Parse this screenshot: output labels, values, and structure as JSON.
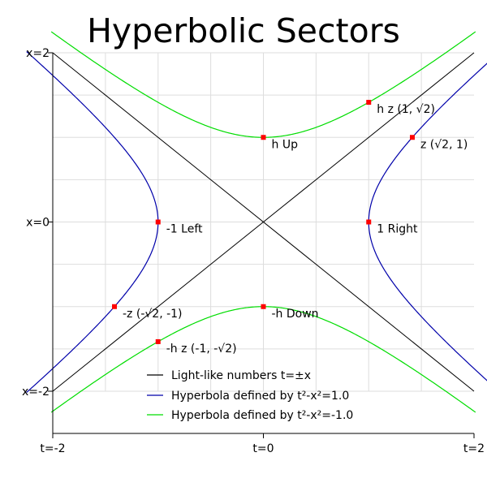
{
  "chart_data": {
    "type": "line",
    "title": "Hyperbolic Sectors",
    "xlim": [
      -2,
      2
    ],
    "ylim": [
      -2,
      2
    ],
    "grid": true,
    "legend_position": "lower-right",
    "x_ticks": [
      {
        "value": -2,
        "label": "t=-2"
      },
      {
        "value": 0,
        "label": "t=0"
      },
      {
        "value": 2,
        "label": "t=2"
      }
    ],
    "y_ticks": [
      {
        "value": 2,
        "label": "x=2"
      },
      {
        "value": 0,
        "label": "x=0"
      },
      {
        "value": -2,
        "label": "x=-2"
      }
    ],
    "series": [
      {
        "name": "Light-like numbers t=±x",
        "color": "#000000",
        "equation": "t=±x"
      },
      {
        "name": "Hyperbola defined by t²-x²=1.0",
        "color": "#0000aa",
        "equation": "t²-x²=1.0"
      },
      {
        "name": "Hyperbola defined by t²-x²=-1.0",
        "color": "#00dd00",
        "equation": "t²-x²=-1.0"
      }
    ],
    "points": [
      {
        "label": "1 Right",
        "t": 1,
        "x": 0
      },
      {
        "label": "-1 Left",
        "t": -1,
        "x": 0
      },
      {
        "label": "h Up",
        "t": 0,
        "x": 1
      },
      {
        "label": "-h Down",
        "t": 0,
        "x": -1
      },
      {
        "label": "z (√2, 1)",
        "t": 1.4142,
        "x": 1
      },
      {
        "label": "-z (-√2, -1)",
        "t": -1.4142,
        "x": -1
      },
      {
        "label": "h z (1, √2)",
        "t": 1,
        "x": 1.4142
      },
      {
        "label": "-h z (-1, -√2)",
        "t": -1,
        "x": -1.4142
      }
    ],
    "point_color": "#ff0000"
  }
}
